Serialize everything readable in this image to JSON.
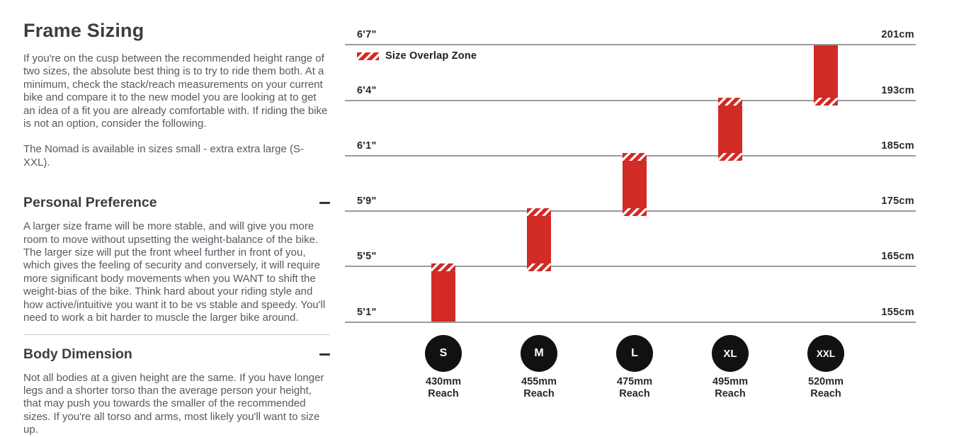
{
  "page": {
    "title": "Frame Sizing",
    "intro": "If you're on the cusp between the recommended height range of two sizes, the absolute best thing is to try to ride them both. At a minimum, check the stack/reach measurements on your current bike and compare it to the new model you are looking at to get an idea of a fit you are already comfortable with. If riding the bike is not an option, consider the following.",
    "availability": "The Nomad is available in sizes small - extra extra large (S-XXL).",
    "sections": [
      {
        "heading": "Personal Preference",
        "collapse_icon": "minus",
        "body": "A larger size frame will be more stable, and will give you more room to move without upsetting the weight-balance of the bike. The larger size will put the front wheel further in front of you, which gives the feeling of security and conversely, it will require more significant body movements when you WANT to shift the weight-bias of the bike. Think hard about your riding style and how active/intuitive you want it to be vs stable and speedy. You'll need to work a bit harder to muscle the larger bike around."
      },
      {
        "heading": "Body Dimension",
        "collapse_icon": "minus",
        "body": "Not all bodies at a given height are the same. If you have longer legs and a shorter torso than the average person your height, that may push you towards the smaller of the recommended sizes. If you're all torso and arms, most likely you'll want to size up."
      }
    ]
  },
  "chart_data": {
    "type": "bar",
    "subtype": "vertical-range-bars",
    "title": "",
    "legend": {
      "label": "Size Overlap Zone",
      "swatch": "red-white-hatch",
      "position": "top-left"
    },
    "gridlines": [
      {
        "imperial": "6'7\"",
        "metric": "201cm"
      },
      {
        "imperial": "6'4\"",
        "metric": "193cm"
      },
      {
        "imperial": "6'1\"",
        "metric": "185cm"
      },
      {
        "imperial": "5'9\"",
        "metric": "175cm"
      },
      {
        "imperial": "5'5\"",
        "metric": "165cm"
      },
      {
        "imperial": "5'1\"",
        "metric": "155cm"
      }
    ],
    "sizes": [
      {
        "label": "S",
        "reach": "430mm",
        "reach_caption": "Reach",
        "reach_mm": 430,
        "range_imperial": "5'1\"-5'5\"",
        "range_metric": "155cm-165cm",
        "top_line": 4,
        "bottom_line": 5,
        "top_overlap": true,
        "bottom_overlap": false
      },
      {
        "label": "M",
        "reach": "455mm",
        "reach_caption": "Reach",
        "reach_mm": 455,
        "range_imperial": "5'5\"-5'9\"",
        "range_metric": "165cm-175cm",
        "top_line": 3,
        "bottom_line": 4,
        "top_overlap": true,
        "bottom_overlap": true
      },
      {
        "label": "L",
        "reach": "475mm",
        "reach_caption": "Reach",
        "reach_mm": 475,
        "range_imperial": "5'9\"-6'1\"",
        "range_metric": "175cm-185cm",
        "top_line": 2,
        "bottom_line": 3,
        "top_overlap": true,
        "bottom_overlap": true
      },
      {
        "label": "XL",
        "reach": "495mm",
        "reach_caption": "Reach",
        "reach_mm": 495,
        "range_imperial": "6'1\"-6'4\"",
        "range_metric": "185cm-193cm",
        "top_line": 1,
        "bottom_line": 2,
        "top_overlap": true,
        "bottom_overlap": true
      },
      {
        "label": "XXL",
        "reach": "520mm",
        "reach_caption": "Reach",
        "reach_mm": 520,
        "range_imperial": "6'4\"-6'7\"",
        "range_metric": "193cm-201cm",
        "top_line": 0,
        "bottom_line": 1,
        "top_overlap": false,
        "bottom_overlap": true
      }
    ],
    "colors": {
      "bar_red": "#d22b26",
      "circle_black": "#111111",
      "gridline_gray": "#9b9b9b",
      "label_dark": "#28282a"
    }
  }
}
